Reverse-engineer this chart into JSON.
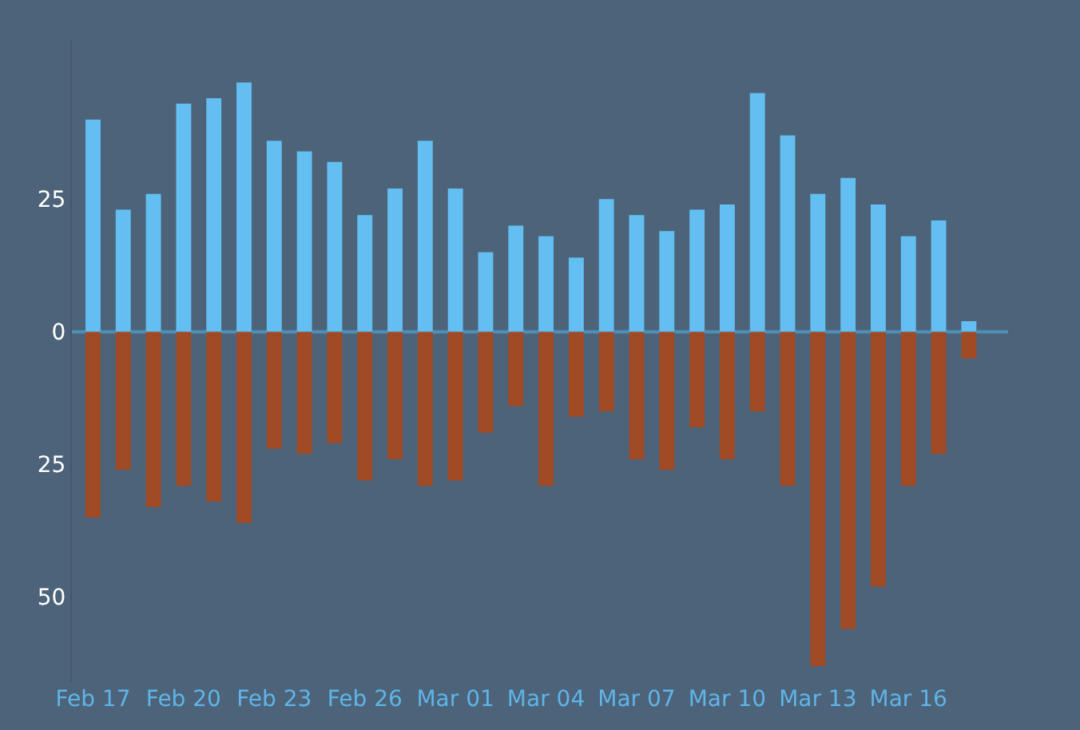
{
  "chart_data": {
    "type": "bar",
    "stacked": true,
    "categories": [
      "Feb 17",
      null,
      null,
      "Feb 20",
      null,
      null,
      "Feb 23",
      null,
      null,
      "Feb 26",
      null,
      null,
      "Mar 01",
      null,
      null,
      "Mar 04",
      null,
      null,
      "Mar 07",
      null,
      null,
      "Mar 10",
      null,
      null,
      "Mar 13",
      null,
      null,
      "Mar 16",
      null,
      null
    ],
    "series": [
      {
        "color": "#63bef2",
        "values": [
          40,
          23,
          26,
          43,
          44,
          47,
          36,
          34,
          32,
          22,
          27,
          36,
          27,
          15,
          20,
          18,
          14,
          25,
          22,
          19,
          23,
          24,
          45,
          37,
          26,
          29,
          24,
          18,
          21,
          2
        ]
      },
      {
        "color": "#a04b26",
        "values": [
          -35,
          -26,
          -33,
          -29,
          -32,
          -36,
          -22,
          -23,
          -21,
          -28,
          -24,
          -29,
          -28,
          -19,
          -14,
          -29,
          -16,
          -15,
          -24,
          -26,
          -18,
          -24,
          -15,
          -29,
          -63,
          -56,
          -48,
          -29,
          -23,
          -5
        ]
      }
    ],
    "ylim": [
      -66,
      55
    ],
    "ref_lines": [
      {
        "axis": "y",
        "value": 0,
        "color": "#4f90b8"
      }
    ],
    "yticks": [
      {
        "value": -50,
        "label": "50"
      },
      {
        "value": -25,
        "label": "25"
      },
      0,
      25
    ],
    "grid": false
  }
}
